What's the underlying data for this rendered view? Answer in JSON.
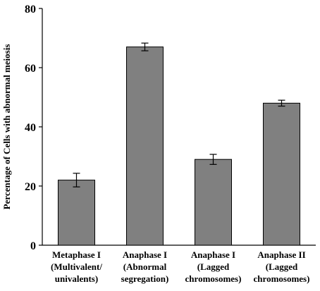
{
  "chart_data": {
    "type": "bar",
    "categories": [
      [
        "Metaphase I",
        "(Multivalent/",
        "univalents)"
      ],
      [
        "Anaphase I",
        "(Abnormal",
        "segregation)"
      ],
      [
        "Anaphase I",
        "(Lagged",
        "chromosomes)"
      ],
      [
        "Anaphase II",
        "(Lagged",
        "chromosomes)"
      ]
    ],
    "values": [
      22,
      67,
      29,
      48
    ],
    "errors": [
      2.3,
      1.3,
      1.7,
      1.0
    ],
    "ylabel": "Percentage of Cells with abnormal meiosis",
    "xlabel": "",
    "title": "",
    "ylim": [
      0,
      80
    ],
    "yticks": [
      0,
      20,
      40,
      60,
      80
    ],
    "grid": false,
    "bar_color": "#808080"
  }
}
